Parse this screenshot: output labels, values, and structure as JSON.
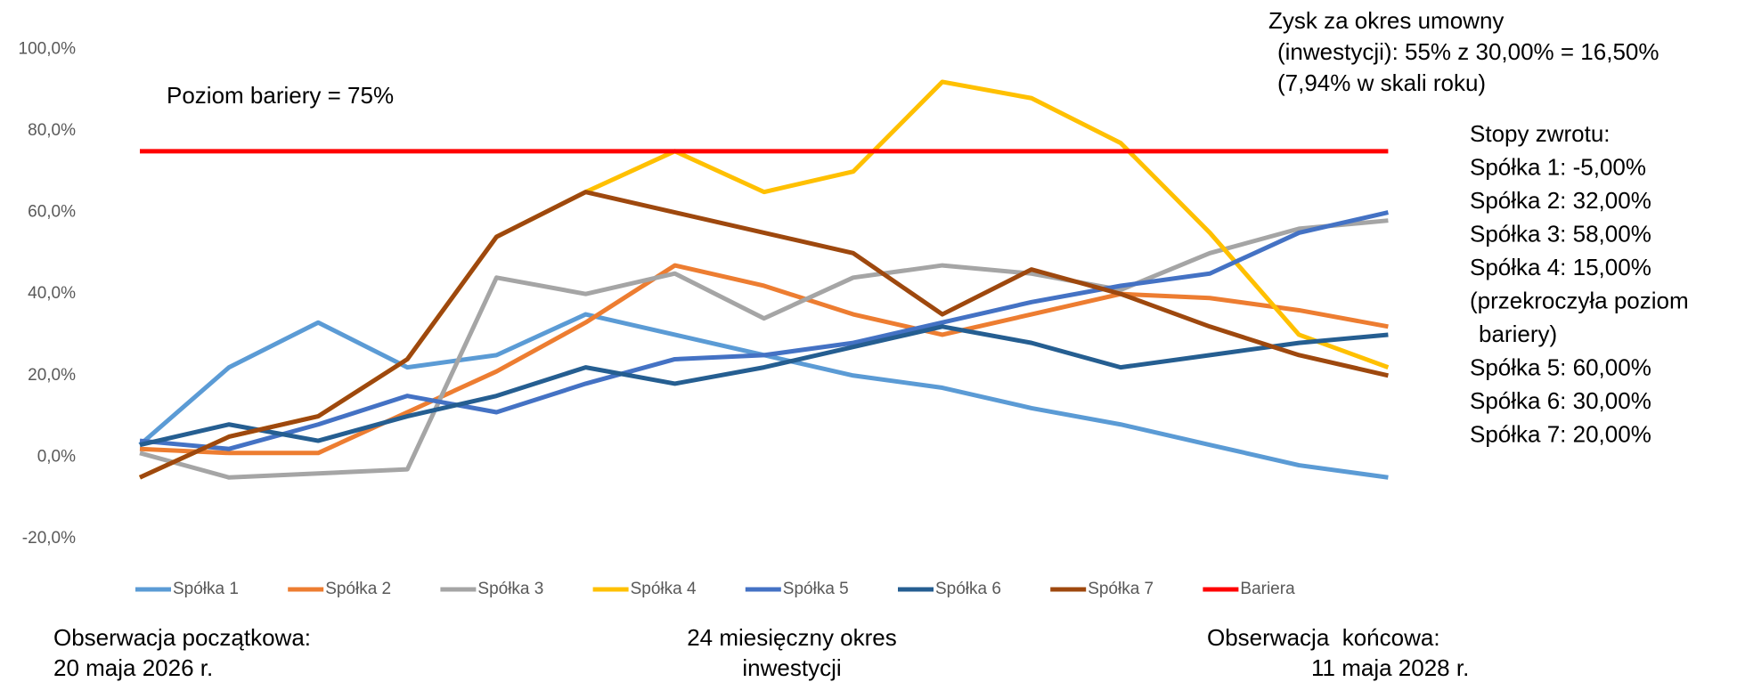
{
  "chart_data": {
    "type": "line",
    "categories": [
      null,
      null,
      null,
      null,
      null,
      null,
      null,
      null,
      null,
      null,
      null,
      null,
      null,
      null,
      null
    ],
    "series": [
      {
        "name": "Spółka 1",
        "color": "#5b9bd5",
        "values": [
          3,
          22,
          33,
          22,
          25,
          35,
          30,
          25,
          20,
          17,
          12,
          8,
          3,
          -2,
          -5
        ]
      },
      {
        "name": "Spółka 2",
        "color": "#ed7d31",
        "values": [
          2,
          1,
          1,
          11,
          21,
          33,
          47,
          42,
          35,
          30,
          35,
          40,
          39,
          36,
          32
        ]
      },
      {
        "name": "Spółka 3",
        "color": "#a5a5a5",
        "values": [
          1,
          -5,
          -4,
          -3,
          44,
          40,
          45,
          34,
          44,
          47,
          45,
          41,
          50,
          56,
          58
        ]
      },
      {
        "name": "Spółka 4",
        "color": "#ffc000",
        "values": [
          -5,
          5,
          10,
          24,
          54,
          65,
          75,
          65,
          70,
          92,
          88,
          77,
          55,
          30,
          22
        ]
      },
      {
        "name": "Spółka 5",
        "color": "#4472c4",
        "values": [
          4,
          2,
          8,
          15,
          11,
          18,
          24,
          25,
          28,
          33,
          38,
          42,
          45,
          55,
          60
        ]
      },
      {
        "name": "Spółka 6",
        "color": "#255e91",
        "values": [
          3,
          8,
          4,
          10,
          15,
          22,
          18,
          22,
          27,
          32,
          28,
          22,
          25,
          28,
          30
        ]
      },
      {
        "name": "Spółka 7",
        "color": "#9e480e",
        "values": [
          -5,
          5,
          10,
          24,
          54,
          65,
          60,
          55,
          50,
          35,
          46,
          40,
          32,
          25,
          20
        ]
      },
      {
        "name": "Bariera",
        "color": "#ff0000",
        "values": [
          75,
          75,
          75,
          75,
          75,
          75,
          75,
          75,
          75,
          75,
          75,
          75,
          75,
          75,
          75
        ]
      }
    ],
    "ylim": [
      -20,
      100
    ],
    "yticks": [
      {
        "value": -20,
        "label": "-20,0%"
      },
      {
        "value": 0,
        "label": "0,0%"
      },
      {
        "value": 20,
        "label": "20,0%"
      },
      {
        "value": 40,
        "label": "40,0%"
      },
      {
        "value": 60,
        "label": "60,0%"
      },
      {
        "value": 80,
        "label": "80,0%"
      },
      {
        "value": 100,
        "label": "100,0%"
      }
    ],
    "grid": false,
    "legend": "bottom",
    "annotations": [
      {
        "lines": [
          "Poziom bariery = 75%"
        ]
      },
      {
        "lines": [
          "Zysk za okres umowny",
          "(inwestycji): 55% z 30,00% = 16,50%",
          "(7,94% w skali roku)"
        ]
      },
      {
        "lines": [
          "Stopy zwrotu:",
          "Spółka 1: -5,00%",
          "Spółka 2: 32,00%",
          "Spółka 3: 58,00%",
          "Spółka 4: 15,00%",
          "(przekroczyła poziom",
          "bariery)",
          "Spółka 5: 60,00%",
          "Spółka 6: 30,00%",
          "Spółka 7: 20,00%"
        ]
      },
      {
        "lines": [
          "Obserwacja początkowa:",
          "20 maja 2026 r."
        ]
      },
      {
        "lines": [
          "24 miesięczny okres",
          "inwestycji"
        ]
      },
      {
        "lines": [
          "Obserwacja  końcowa:",
          "11 maja 2028 r."
        ]
      }
    ]
  }
}
